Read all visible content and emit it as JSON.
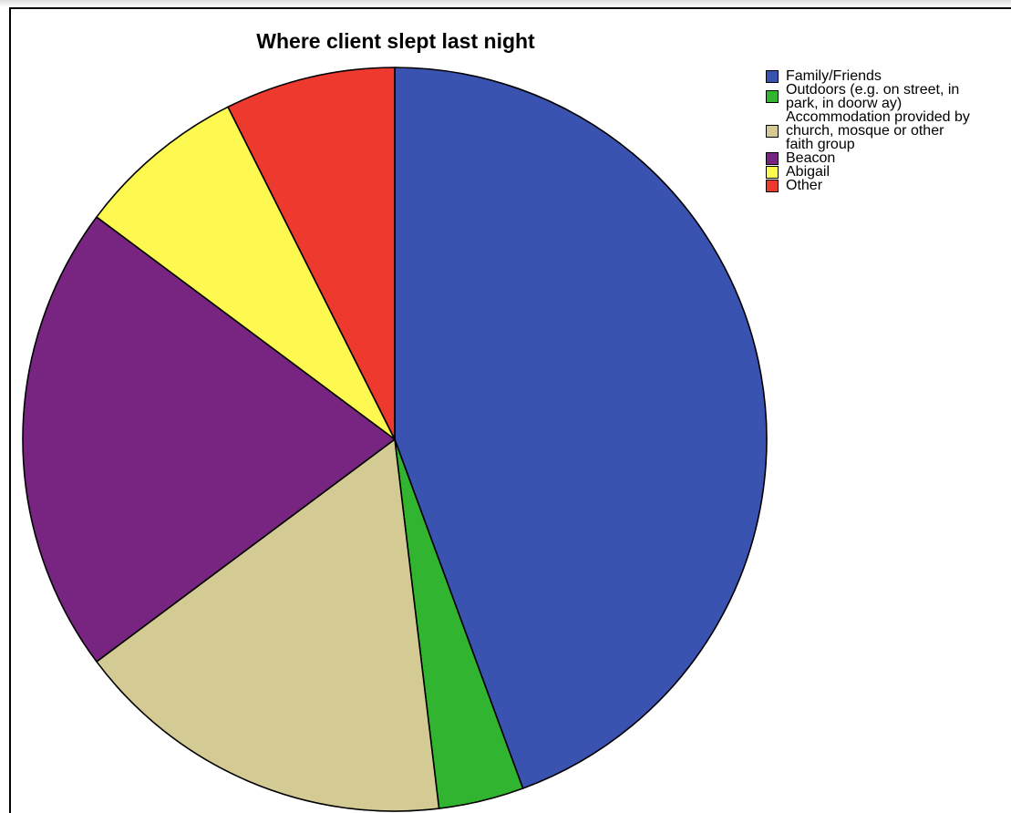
{
  "chart_data": {
    "type": "pie",
    "title": "Where client slept last night",
    "categories": [
      "Family/Friends",
      "Outdoors (e.g. on street, in park, in doorw ay)",
      "Accommodation provided by church, mosque or other faith group",
      "Beacon",
      "Abigail",
      "Other"
    ],
    "legend_lines": [
      "Family/Friends",
      "Outdoors (e.g. on street, in\npark, in doorw ay)",
      "Accommodation provided by\nchurch, mosque or other\nfaith group",
      "Beacon",
      "Abigail",
      "Other"
    ],
    "values": [
      44.4,
      3.7,
      16.7,
      20.4,
      7.4,
      7.4
    ],
    "value_unit": "percent of clients (estimated)",
    "colors": [
      "#3b53b0",
      "#31b531",
      "#d3cb93",
      "#772580",
      "#fdf950",
      "#ee3a2e"
    ],
    "start_angle_deg": 0,
    "direction": "clockwise",
    "legend_position": "top-right"
  }
}
